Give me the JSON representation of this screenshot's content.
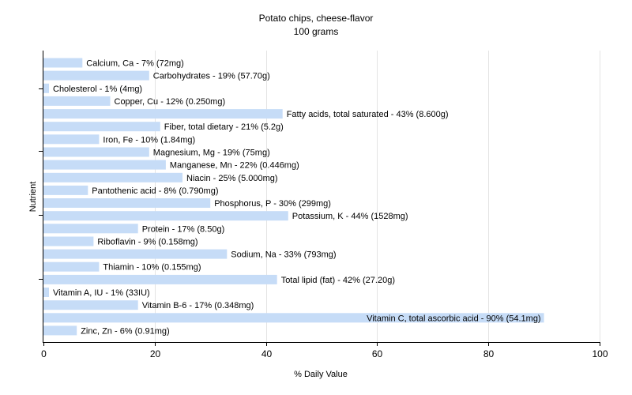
{
  "chart_data": {
    "type": "bar",
    "orientation": "horizontal",
    "title": "Potato chips, cheese-flavor",
    "subtitle": "100 grams",
    "xlabel": "% Daily Value",
    "ylabel": "Nutrient",
    "xlim": [
      0,
      100
    ],
    "xticks": [
      "0",
      "20",
      "40",
      "60",
      "80",
      "100"
    ],
    "grid": true,
    "bar_color": "#c6dcf7",
    "categories": [
      "Calcium, Ca",
      "Carbohydrates",
      "Cholesterol",
      "Copper, Cu",
      "Fatty acids, total saturated",
      "Fiber, total dietary",
      "Iron, Fe",
      "Magnesium, Mg",
      "Manganese, Mn",
      "Niacin",
      "Pantothenic acid",
      "Phosphorus, P",
      "Potassium, K",
      "Protein",
      "Riboflavin",
      "Sodium, Na",
      "Thiamin",
      "Total lipid (fat)",
      "Vitamin A, IU",
      "Vitamin B-6",
      "Vitamin C, total ascorbic acid",
      "Zinc, Zn"
    ],
    "values": [
      7,
      19,
      1,
      12,
      43,
      21,
      10,
      19,
      22,
      25,
      8,
      30,
      44,
      17,
      9,
      33,
      10,
      42,
      1,
      17,
      90,
      6
    ],
    "labels": [
      "Calcium, Ca - 7% (72mg)",
      "Carbohydrates - 19% (57.70g)",
      "Cholesterol - 1% (4mg)",
      "Copper, Cu - 12% (0.250mg)",
      "Fatty acids, total saturated - 43% (8.600g)",
      "Fiber, total dietary - 21% (5.2g)",
      "Iron, Fe - 10% (1.84mg)",
      "Magnesium, Mg - 19% (75mg)",
      "Manganese, Mn - 22% (0.446mg)",
      "Niacin - 25% (5.000mg)",
      "Pantothenic acid - 8% (0.790mg)",
      "Phosphorus, P - 30% (299mg)",
      "Potassium, K - 44% (1528mg)",
      "Protein - 17% (8.50g)",
      "Riboflavin - 9% (0.158mg)",
      "Sodium, Na - 33% (793mg)",
      "Thiamin - 10% (0.155mg)",
      "Total lipid (fat) - 42% (27.20g)",
      "Vitamin A, IU - 1% (33IU)",
      "Vitamin B-6 - 17% (0.348mg)",
      "Vitamin C, total ascorbic acid - 90% (54.1mg)",
      "Zinc, Zn - 6% (0.91mg)"
    ]
  }
}
